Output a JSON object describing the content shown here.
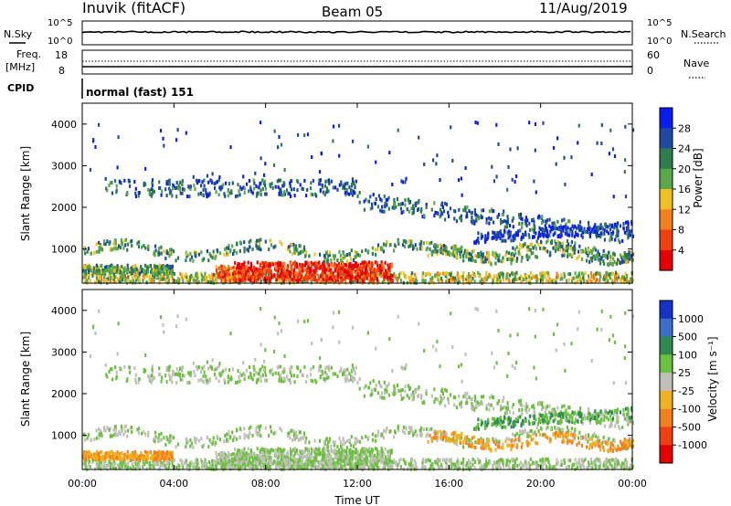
{
  "header": {
    "station": "Inuvik (fitACF)",
    "beam": "Beam 05",
    "date": "11/Aug/2019"
  },
  "top_panels": {
    "nsky_label": "N.Sky",
    "nsky_ticks": [
      "10^5",
      "10^0"
    ],
    "nsearch_label": "N.Search",
    "nsearch_ticks": [
      "10^5",
      "10^0"
    ],
    "freq_label": "Freq.",
    "freq_unit": "[MHz]",
    "freq_ticks": [
      "18",
      "8"
    ],
    "nave_label": "Nave",
    "nave_ticks": [
      "60",
      "0"
    ],
    "cpid_label": "CPID",
    "cpid_text": "normal (fast) 151"
  },
  "chart_data": [
    {
      "type": "heatmap",
      "panel": "power",
      "ylabel": "Slant Range [km]",
      "ylim": [
        180,
        4500
      ],
      "yticks": [
        "1000",
        "2000",
        "3000",
        "4000"
      ],
      "xlim_hours": [
        0,
        24
      ],
      "colorbar": {
        "label": "Power [dB]",
        "ticks": [
          "4",
          "8",
          "12",
          "16",
          "20",
          "24",
          "28"
        ],
        "colors": [
          "#0a1cf0",
          "#1e4aa0",
          "#2e7d4e",
          "#5aa84a",
          "#f0c020",
          "#f08020",
          "#f04010",
          "#e60000"
        ]
      }
    },
    {
      "type": "heatmap",
      "panel": "velocity",
      "ylabel": "Slant Range [km]",
      "ylim": [
        180,
        4500
      ],
      "yticks": [
        "1000",
        "2000",
        "3000",
        "4000"
      ],
      "xlim_hours": [
        0,
        24
      ],
      "xlabel": "Time UT",
      "xticks": [
        "00:00",
        "04:00",
        "08:00",
        "12:00",
        "16:00",
        "20:00",
        "00:00"
      ],
      "colorbar": {
        "label": "Velocity [m s⁻¹]",
        "ticks": [
          "1000",
          "500",
          "100",
          "25",
          "-25",
          "-100",
          "-500",
          "-1000"
        ],
        "colors": [
          "#1432c8",
          "#3c6ec8",
          "#2e8b50",
          "#6cc040",
          "#c0c0b8",
          "#f0b020",
          "#f08020",
          "#f04010",
          "#e60000"
        ]
      }
    }
  ]
}
